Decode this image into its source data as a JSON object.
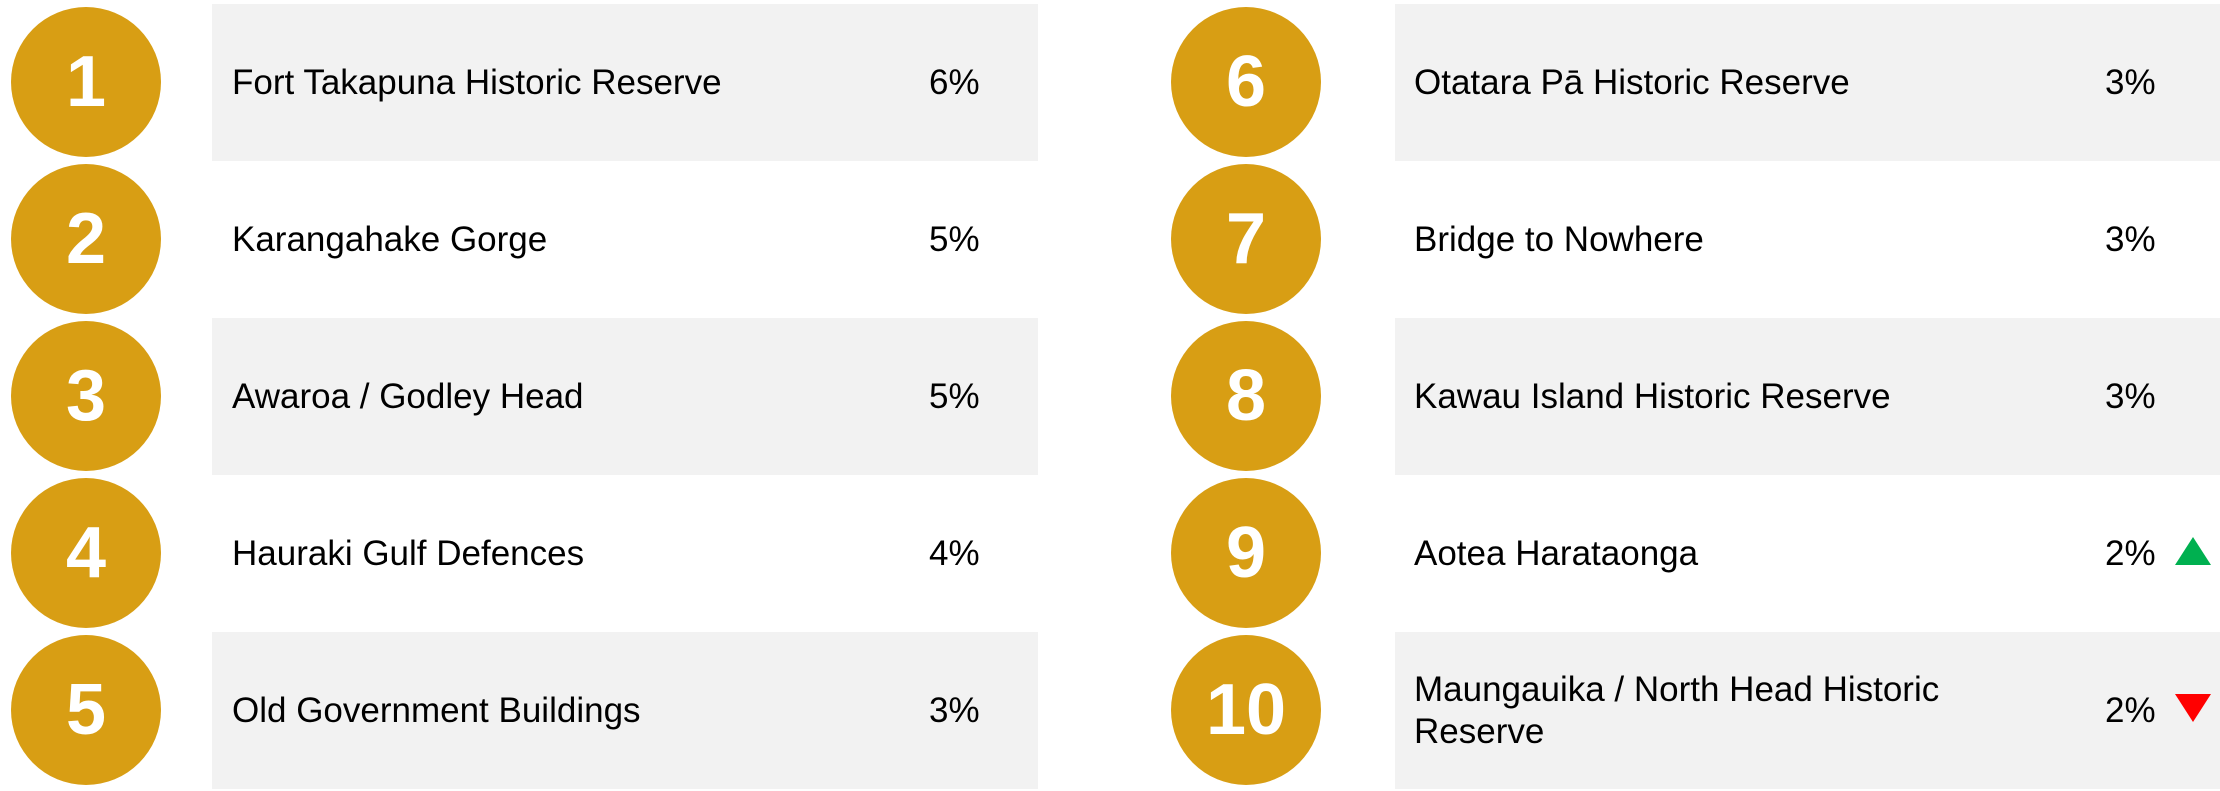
{
  "items": [
    {
      "rank": 1,
      "name": "Fort Takapuna Historic Reserve",
      "value": "6%"
    },
    {
      "rank": 2,
      "name": "Karangahake Gorge",
      "value": "5%"
    },
    {
      "rank": 3,
      "name": "Awaroa / Godley Head",
      "value": "5%"
    },
    {
      "rank": 4,
      "name": "Hauraki Gulf Defences",
      "value": "4%"
    },
    {
      "rank": 5,
      "name": "Old Government Buildings",
      "value": "3%"
    },
    {
      "rank": 6,
      "name": "Otatara Pā Historic Reserve",
      "value": "3%"
    },
    {
      "rank": 7,
      "name": "Bridge to Nowhere",
      "value": "3%"
    },
    {
      "rank": 8,
      "name": "Kawau Island Historic Reserve",
      "value": "3%"
    },
    {
      "rank": 9,
      "name": "Aotea Harataonga",
      "value": "2%",
      "trend": "up"
    },
    {
      "rank": 10,
      "name": "Maungauika / North Head Historic Reserve",
      "value": "2%",
      "trend": "down"
    }
  ]
}
